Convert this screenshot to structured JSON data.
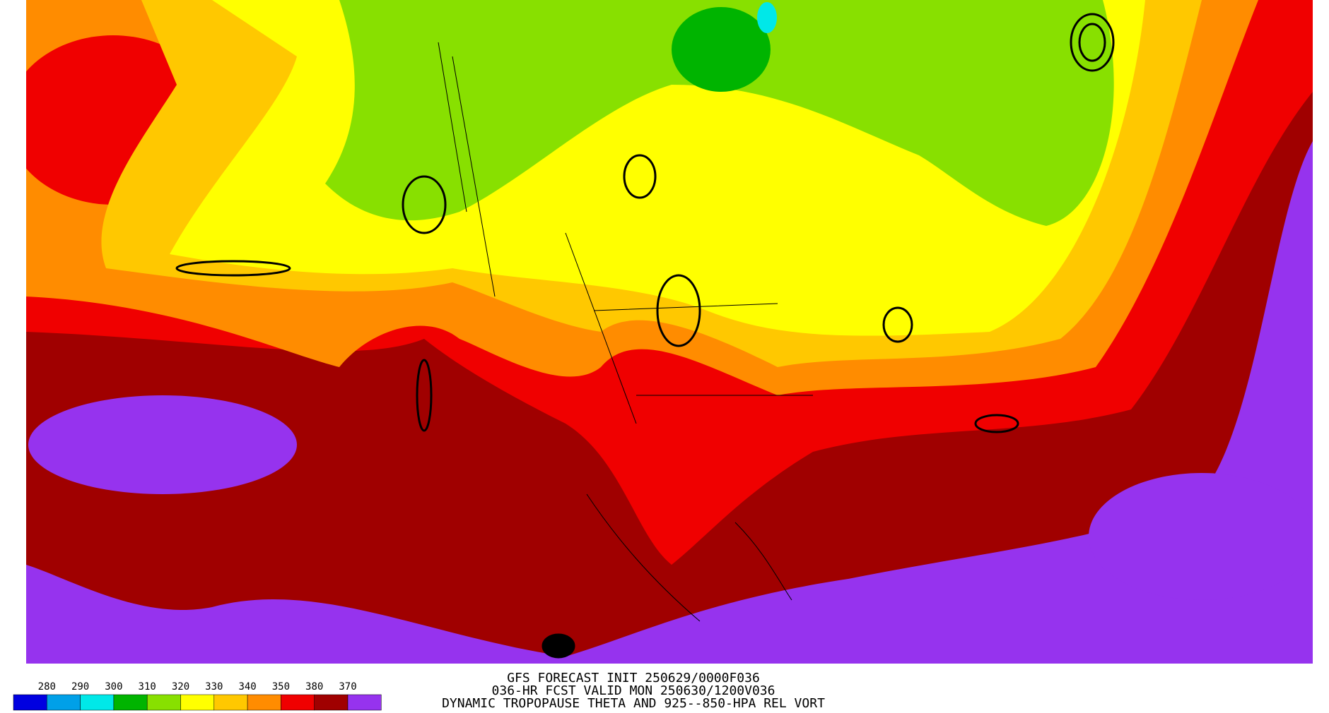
{
  "legend": {
    "labels": [
      280,
      290,
      300,
      310,
      320,
      330,
      340,
      350,
      380,
      370
    ],
    "colors": [
      "#0000e0",
      "#00a0e8",
      "#00e8e8",
      "#00b400",
      "#88e000",
      "#ffff00",
      "#ffc800",
      "#ff8c00",
      "#f00000",
      "#a00000",
      "#9633ee"
    ]
  },
  "caption": {
    "line1": "GFS FORECAST INIT 250629/0000F036",
    "line2": "036-HR FCST VALID MON 250630/1200V036",
    "line3": "DYNAMIC TROPOPAUSE THETA AND 925--850-HPA REL VORT"
  }
}
